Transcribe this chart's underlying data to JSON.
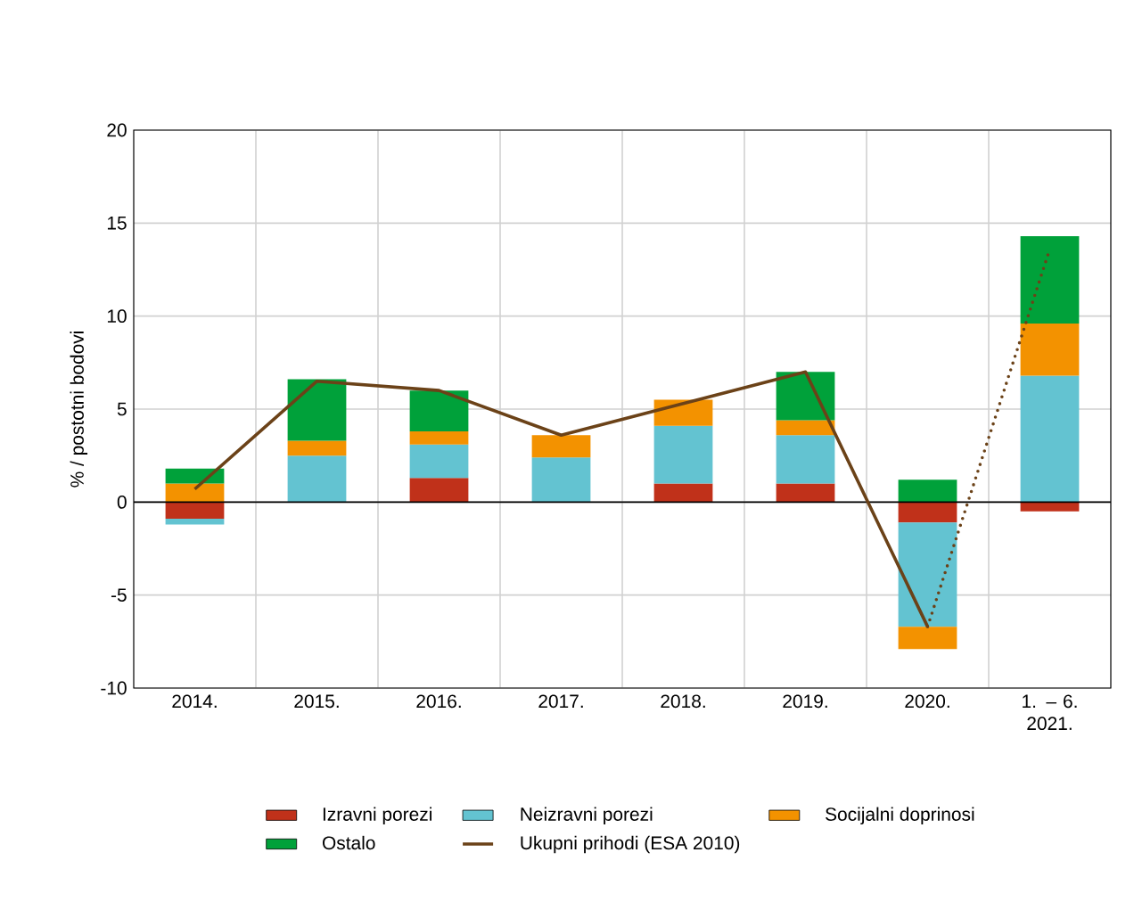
{
  "chart_data": {
    "type": "bar",
    "stacked": true,
    "ylabel": "% / postotni bodovi",
    "categories": [
      "2014.",
      "2015.",
      "2016.",
      "2017.",
      "2018.",
      "2019.",
      "2020.",
      "1. – 6. 2021."
    ],
    "series": [
      {
        "name": "Izravni porezi",
        "color": "#c0311a",
        "values": [
          -0.9,
          0,
          1.3,
          0,
          1.0,
          1.0,
          -1.1,
          -0.5
        ]
      },
      {
        "name": "Neizravni porezi",
        "color": "#63c3d1",
        "values": [
          -0.3,
          2.5,
          1.8,
          2.4,
          3.1,
          2.6,
          -5.6,
          6.8
        ]
      },
      {
        "name": "Socijalni doprinosi",
        "color": "#f39200",
        "values": [
          1.0,
          0.8,
          0.7,
          1.2,
          1.4,
          0.8,
          -1.2,
          2.8
        ]
      },
      {
        "name": "Ostalo",
        "color": "#00a13a",
        "values": [
          0.8,
          3.3,
          2.2,
          0,
          0,
          2.6,
          1.2,
          4.7
        ]
      },
      {
        "name": "Ukupni prihodi (ESA 2010)",
        "type": "line",
        "color": "#6b4218",
        "line_style": "solid",
        "values": [
          0.7,
          6.5,
          6.0,
          3.6,
          5.3,
          7.0,
          -6.7,
          null
        ]
      },
      {
        "type": "line",
        "color": "#6b4218",
        "line_style": "dotted",
        "values": [
          null,
          null,
          null,
          null,
          null,
          null,
          -6.7,
          13.6
        ]
      }
    ],
    "ylim": [
      -10,
      20
    ],
    "yticks": [
      -10,
      -5,
      0,
      5,
      10,
      15,
      20
    ],
    "grid": true,
    "legend": "bottom"
  }
}
